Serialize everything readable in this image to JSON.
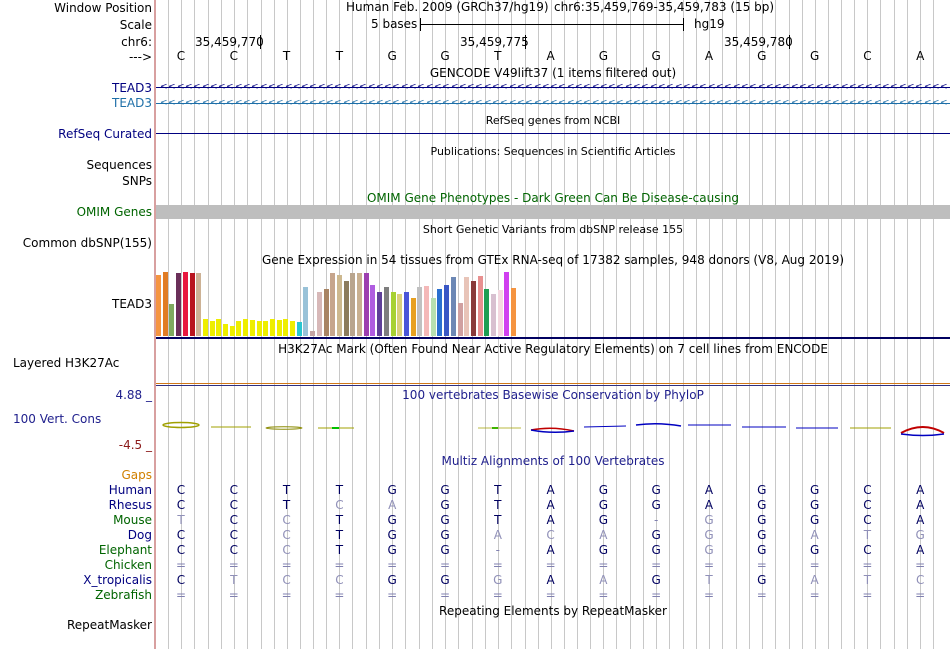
{
  "labels": {
    "window_position": "Window Position",
    "scale": "Scale",
    "chr": "chr6:",
    "arrow": "--->",
    "tead3_a": "TEAD3",
    "tead3_b": "TEAD3",
    "refseq": "RefSeq Curated",
    "sequences": "Sequences",
    "snps": "SNPs",
    "omim": "OMIM Genes",
    "dbsnp": "Common dbSNP(155)",
    "gtex": "TEAD3",
    "h3k27ac": "Layered H3K27Ac",
    "cons_max": "4.88 _",
    "cons": "100 Vert. Cons",
    "cons_min": "-4.5 _",
    "gaps": "Gaps",
    "repeat": "RepeatMasker"
  },
  "header": {
    "assembly": "Human Feb. 2009 (GRCh37/hg19)",
    "position": "chr6:35,459,769-35,459,783 (15 bp)",
    "scale_text": "5 bases",
    "db": "hg19",
    "ticks": [
      "35,459,770",
      "35,459,775",
      "35,459,780"
    ]
  },
  "titles": {
    "gencode": "GENCODE V49lift37 (1 items filtered out)",
    "refseq": "RefSeq genes from NCBI",
    "publications": "Publications: Sequences in Scientific Articles",
    "omim": "OMIM Gene Phenotypes - Dark Green Can Be Disease-causing",
    "dbsnp": "Short Genetic Variants from dbSNP release 155",
    "gtex": "Gene Expression in 54 tissues from GTEx RNA-seq of 17382 samples, 948 donors (V8, Aug 2019)",
    "h3k27ac": "H3K27Ac Mark (Often Found Near Active Regulatory Elements) on 7 cell lines from ENCODE",
    "phylop": "100 vertebrates Basewise Conservation by PhyloP",
    "multiz": "Multiz Alignments of 100 Vertebrates",
    "repeat": "Repeating Elements by RepeatMasker"
  },
  "bases": [
    "C",
    "C",
    "T",
    "T",
    "G",
    "G",
    "T",
    "A",
    "G",
    "G",
    "A",
    "G",
    "G",
    "C",
    "A"
  ],
  "alignment": [
    {
      "species": "Human",
      "color": "#000080",
      "seq": [
        "C",
        "C",
        "T",
        "T",
        "G",
        "G",
        "T",
        "A",
        "G",
        "G",
        "A",
        "G",
        "G",
        "C",
        "A"
      ]
    },
    {
      "species": "Rhesus",
      "color": "#000080",
      "seq": [
        "C",
        "C",
        "T",
        "C",
        "A",
        "G",
        "T",
        "A",
        "G",
        "G",
        "A",
        "G",
        "G",
        "C",
        "A"
      ]
    },
    {
      "species": "Mouse",
      "color": "#006400",
      "seq": [
        "T",
        "C",
        "C",
        "T",
        "G",
        "G",
        "T",
        "A",
        "G",
        "-",
        "G",
        "G",
        "G",
        "C",
        "A"
      ]
    },
    {
      "species": "Dog",
      "color": "#000080",
      "seq": [
        "C",
        "C",
        "C",
        "T",
        "G",
        "G",
        "A",
        "C",
        "A",
        "G",
        "G",
        "G",
        "A",
        "T",
        "G"
      ]
    },
    {
      "species": "Elephant",
      "color": "#006400",
      "seq": [
        "C",
        "C",
        "C",
        "T",
        "G",
        "G",
        "-",
        "A",
        "G",
        "G",
        "G",
        "G",
        "G",
        "C",
        "A"
      ]
    },
    {
      "species": "Chicken",
      "color": "#006400",
      "seq": [
        "=",
        "=",
        "=",
        "=",
        "=",
        "=",
        "=",
        "=",
        "=",
        "=",
        "=",
        "=",
        "=",
        "=",
        "="
      ]
    },
    {
      "species": "X_tropicalis",
      "color": "#000080",
      "seq": [
        "C",
        "T",
        "C",
        "C",
        "G",
        "G",
        "G",
        "A",
        "A",
        "G",
        "T",
        "G",
        "A",
        "T",
        "C"
      ]
    },
    {
      "species": "Zebrafish",
      "color": "#006400",
      "seq": [
        "=",
        "=",
        "=",
        "=",
        "=",
        "=",
        "=",
        "=",
        "=",
        "=",
        "=",
        "=",
        "=",
        "=",
        "="
      ]
    }
  ],
  "gtex_values": [
    0.96,
    1.0,
    0.5,
    0.99,
    1.0,
    0.98,
    0.98,
    0.26,
    0.24,
    0.27,
    0.18,
    0.16,
    0.23,
    0.26,
    0.25,
    0.23,
    0.24,
    0.26,
    0.25,
    0.26,
    0.24,
    0.22,
    0.77,
    0.08,
    0.69,
    0.74,
    0.98,
    0.96,
    0.86,
    0.99,
    0.98,
    0.99,
    0.79,
    0.68,
    0.77,
    0.69,
    0.66,
    0.68,
    0.59,
    0.76,
    0.78,
    0.6,
    0.74,
    0.8,
    0.92,
    0.52,
    0.92,
    0.86,
    0.93,
    0.73,
    0.66,
    0.72,
    1.0,
    0.75
  ]
}
